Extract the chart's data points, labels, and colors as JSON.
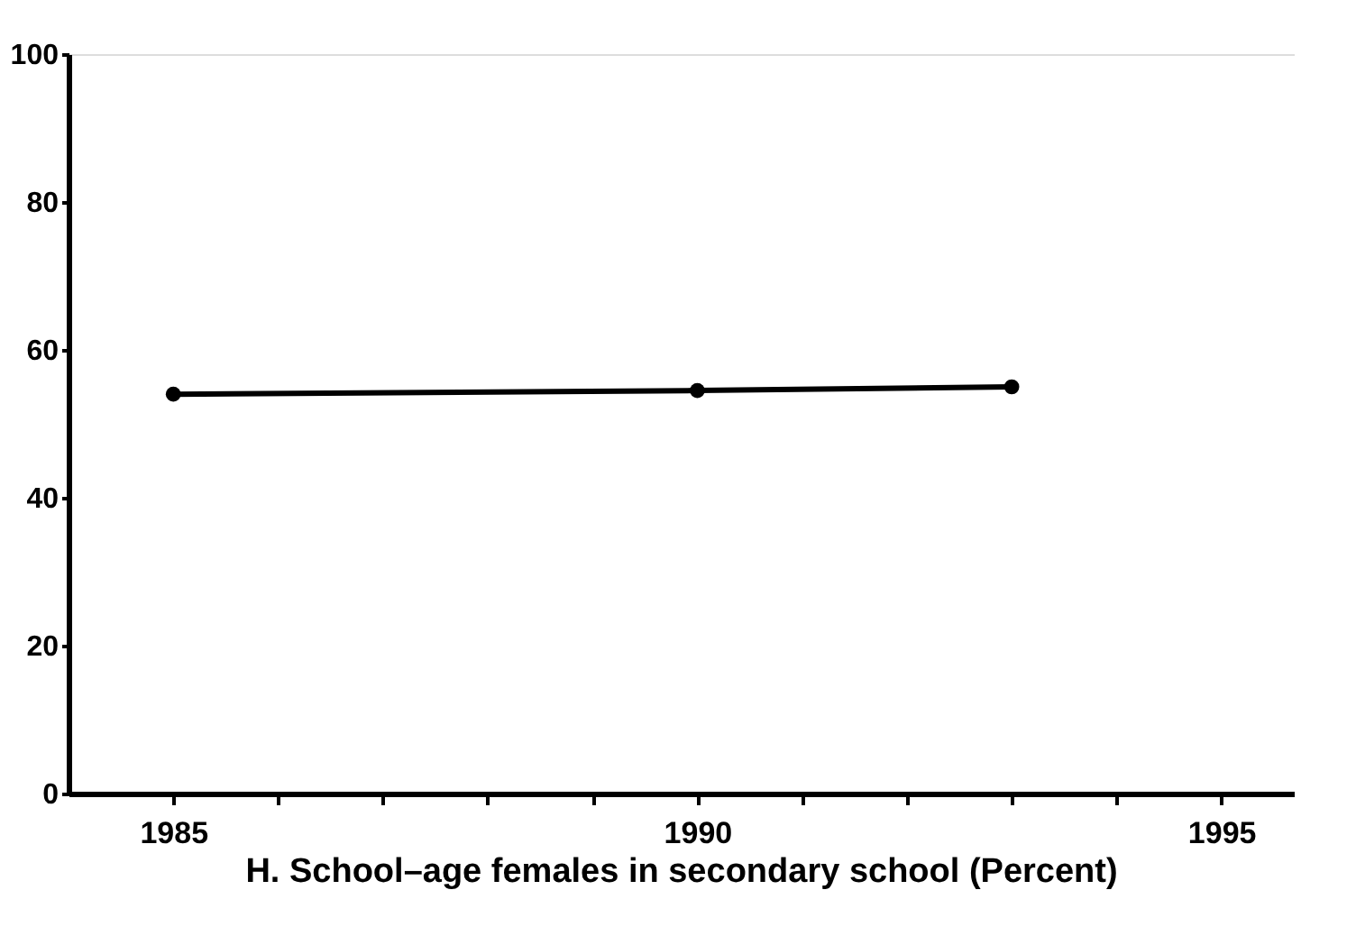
{
  "chart_data": {
    "type": "line",
    "title": "H. School–age females in secondary school (Percent)",
    "x": [
      1985,
      1990,
      1993
    ],
    "series": [
      {
        "color": "#000000",
        "values": [
          54,
          54.5,
          55
        ]
      }
    ],
    "xlim": [
      1984,
      1995.7
    ],
    "xticks": [
      1985,
      {
        "value": 1986,
        "label": null
      },
      {
        "value": 1987,
        "label": null
      },
      {
        "value": 1988,
        "label": null
      },
      {
        "value": 1989,
        "label": null
      },
      1990,
      {
        "value": 1991,
        "label": null
      },
      {
        "value": 1992,
        "label": null
      },
      {
        "value": 1993,
        "label": null
      },
      {
        "value": 1994,
        "label": null
      },
      1995
    ],
    "ylim": [
      0,
      100
    ],
    "yticks": [
      0,
      20,
      40,
      60,
      80,
      100
    ],
    "grid": false,
    "legend": false,
    "marker": "circle",
    "line_style": "solid"
  }
}
